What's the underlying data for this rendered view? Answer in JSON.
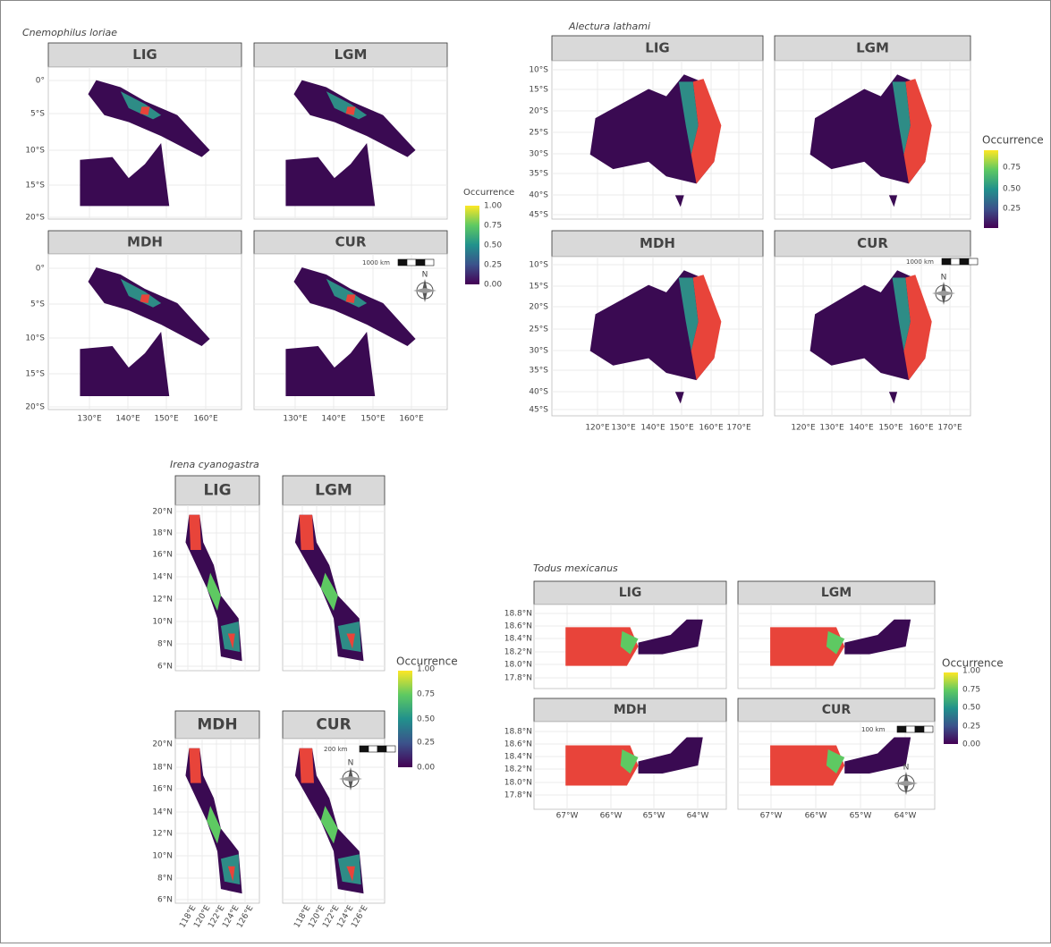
{
  "panels": [
    {
      "species": "Cnemophilus loriae",
      "facets": [
        "LIG",
        "LGM",
        "MDH",
        "CUR"
      ],
      "y_ticks": [
        "0°",
        "5°S",
        "10°S",
        "15°S",
        "20°S"
      ],
      "x_ticks": [
        "130°E",
        "140°E",
        "150°E",
        "160°E"
      ],
      "legend": {
        "title": "Occurrence",
        "ticks": [
          "1.00",
          "0.75",
          "0.50",
          "0.25",
          "0.00"
        ]
      },
      "scale_bar": "1000 km",
      "north": "N"
    },
    {
      "species": "Alectura lathami",
      "facets": [
        "LIG",
        "LGM",
        "MDH",
        "CUR"
      ],
      "y_ticks": [
        "10°S",
        "15°S",
        "20°S",
        "25°S",
        "30°S",
        "35°S",
        "40°S",
        "45°S"
      ],
      "x_ticks": [
        "120°E",
        "130°E",
        "140°E",
        "150°E",
        "160°E",
        "170°E"
      ],
      "legend": {
        "title": "Occurrence",
        "ticks": [
          "0.75",
          "0.50",
          "0.25"
        ]
      },
      "scale_bar": "1000 km",
      "north": "N"
    },
    {
      "species": "Irena cyanogastra",
      "facets": [
        "LIG",
        "LGM",
        "MDH",
        "CUR"
      ],
      "y_ticks": [
        "20°N",
        "18°N",
        "16°N",
        "14°N",
        "12°N",
        "10°N",
        "8°N",
        "6°N"
      ],
      "x_ticks": [
        "118°E",
        "120°E",
        "122°E",
        "124°E",
        "126°E"
      ],
      "legend": {
        "title": "Occurrence",
        "ticks": [
          "1.00",
          "0.75",
          "0.50",
          "0.25",
          "0.00"
        ]
      },
      "scale_bar": "200 km",
      "north": "N"
    },
    {
      "species": "Todus mexicanus",
      "facets": [
        "LIG",
        "LGM",
        "MDH",
        "CUR"
      ],
      "y_ticks": [
        "18.8°N",
        "18.6°N",
        "18.4°N",
        "18.2°N",
        "18.0°N",
        "17.8°N"
      ],
      "x_ticks": [
        "67°W",
        "66°W",
        "65°W",
        "64°W"
      ],
      "legend": {
        "title": "Occurrence",
        "ticks": [
          "1.00",
          "0.75",
          "0.50",
          "0.25",
          "0.00"
        ]
      },
      "scale_bar": "100 km",
      "north": "N"
    }
  ]
}
